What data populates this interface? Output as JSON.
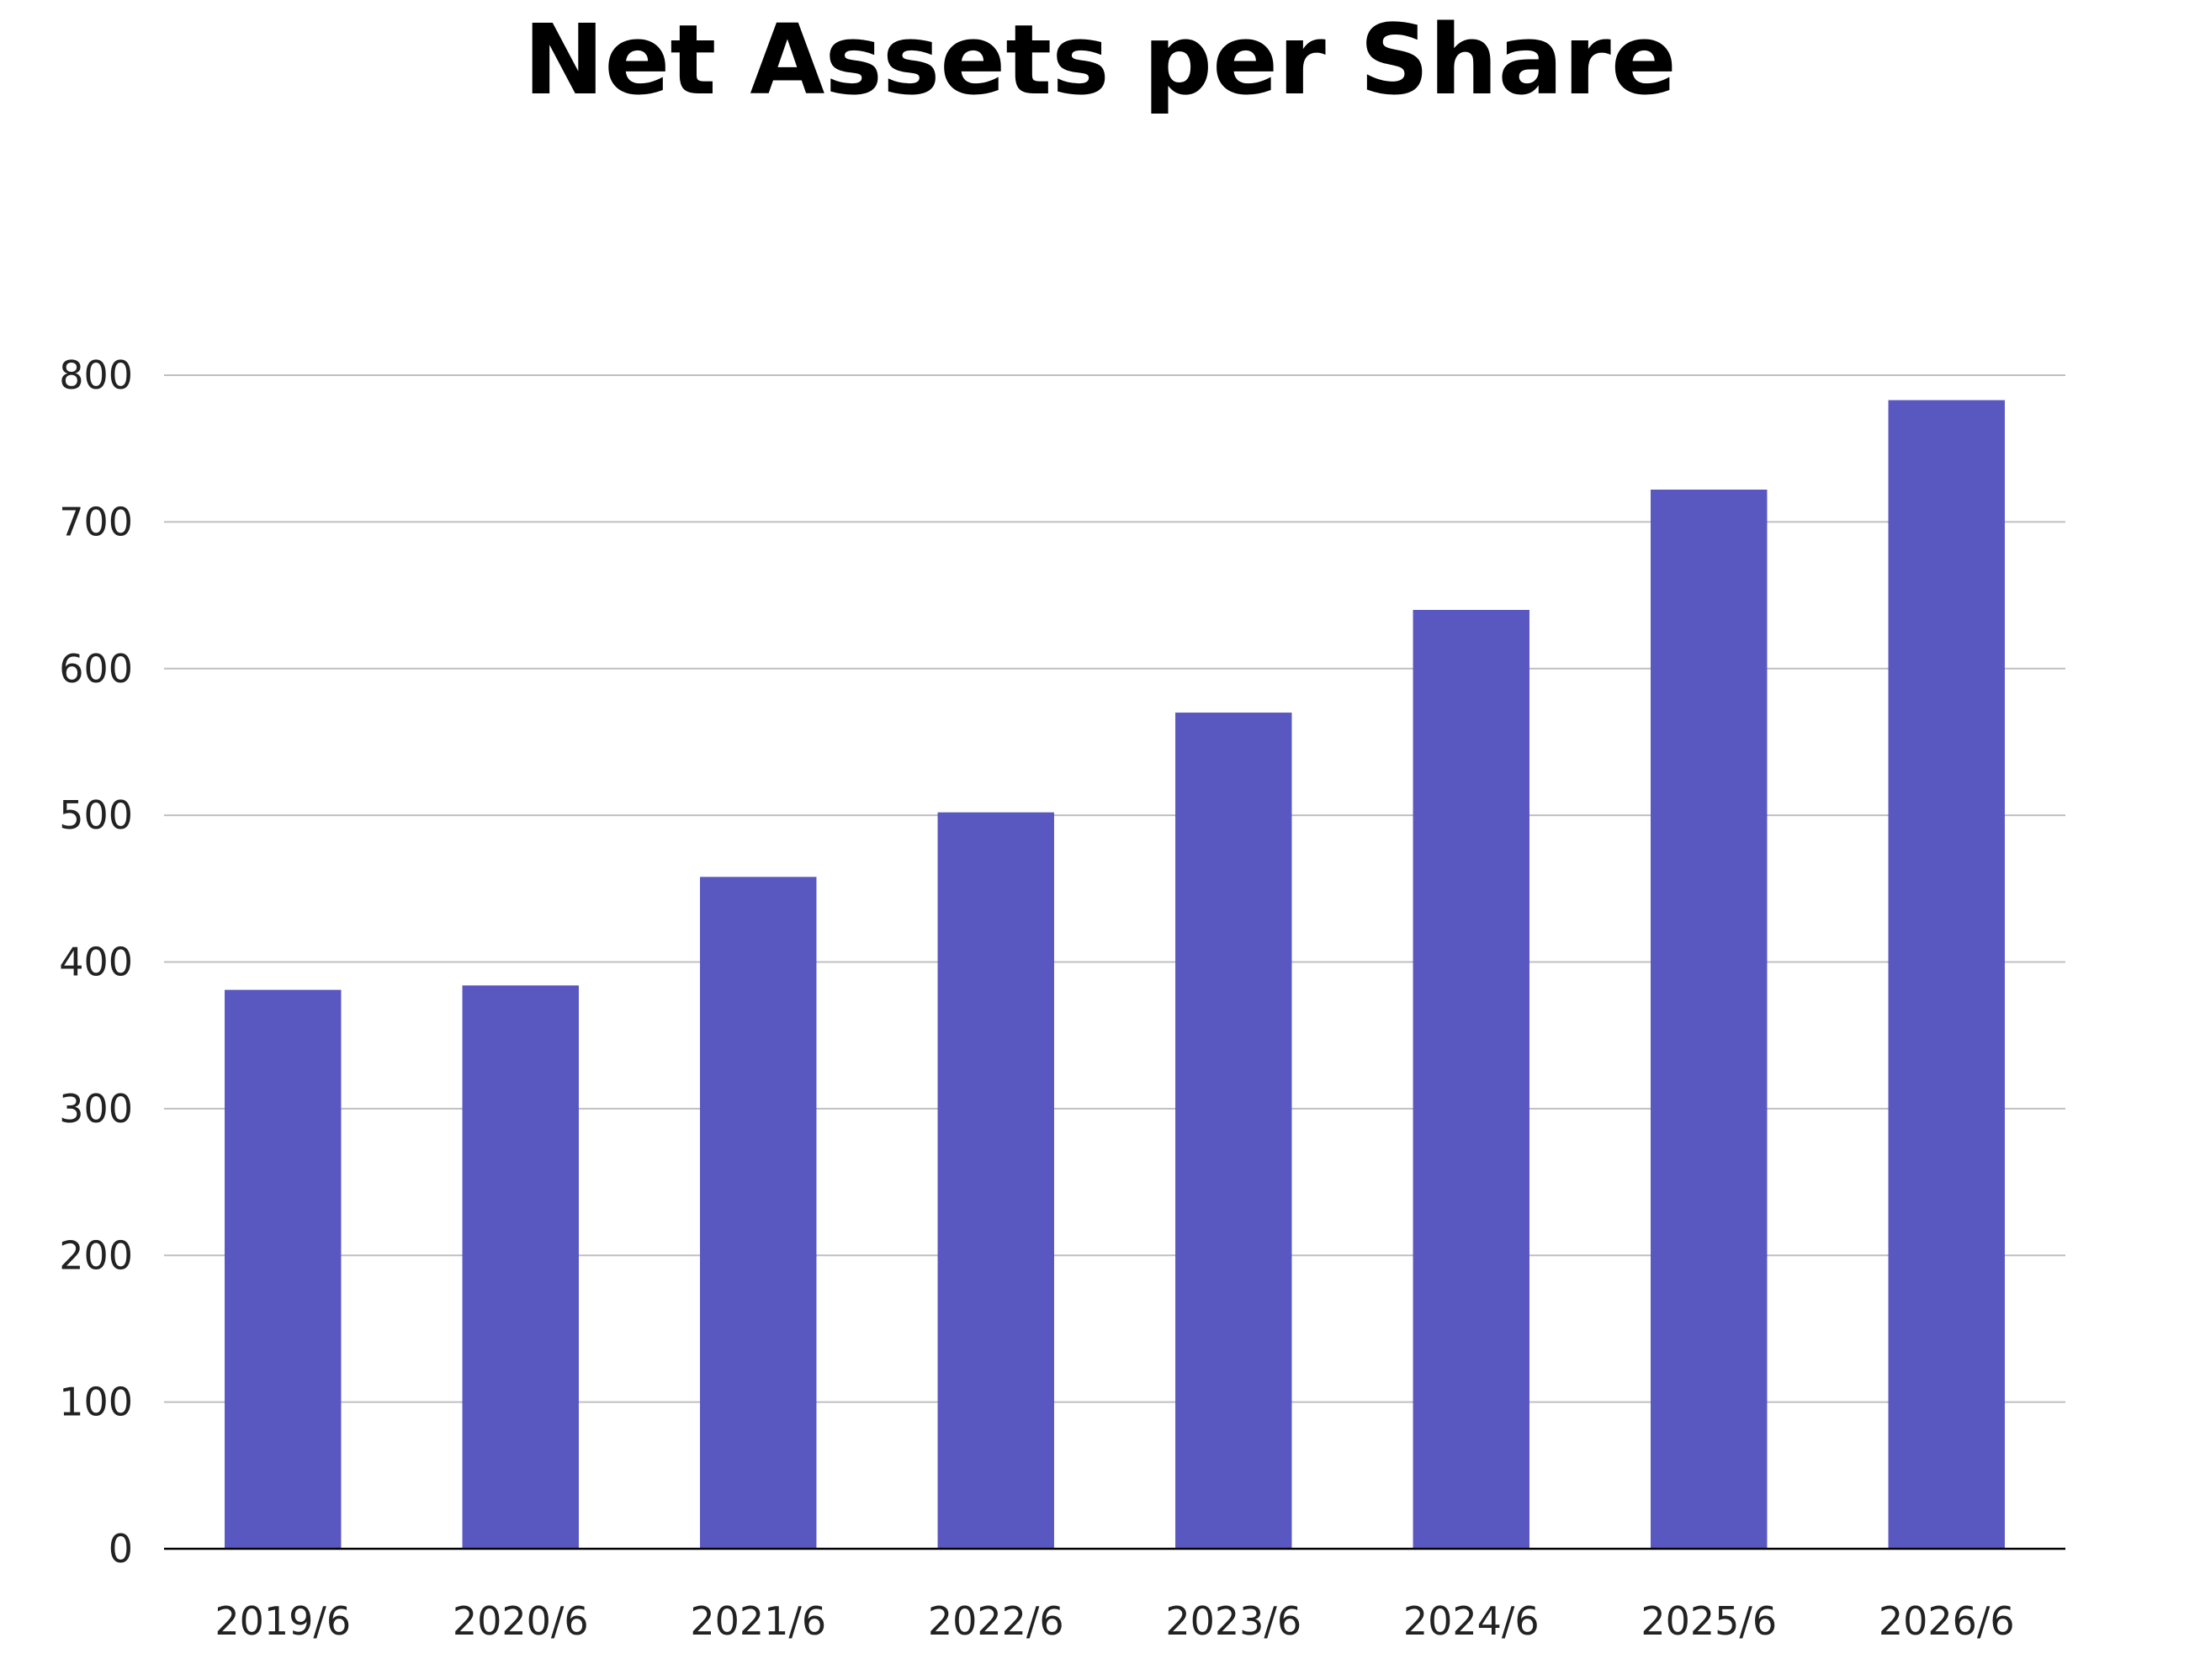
{
  "chart_data": {
    "type": "bar",
    "title": "Net Assets per Share",
    "xlabel": "",
    "ylabel": "",
    "categories": [
      "2019/6",
      "2020/6",
      "2021/6",
      "2022/6",
      "2023/6",
      "2024/6",
      "2025/6",
      "2026/6"
    ],
    "series": [
      {
        "values": [
          381,
          384,
          458,
          502,
          570,
          640,
          722,
          783
        ]
      }
    ],
    "ylim": [
      0,
      800
    ],
    "yticks": [
      "0",
      "100",
      "200",
      "300",
      "400",
      "500",
      "600",
      "700",
      "800"
    ],
    "grid": true,
    "legend": "none",
    "colors": {
      "bar": "#5957c0",
      "grid": "#bfbfbf",
      "axis": "#000000"
    }
  }
}
